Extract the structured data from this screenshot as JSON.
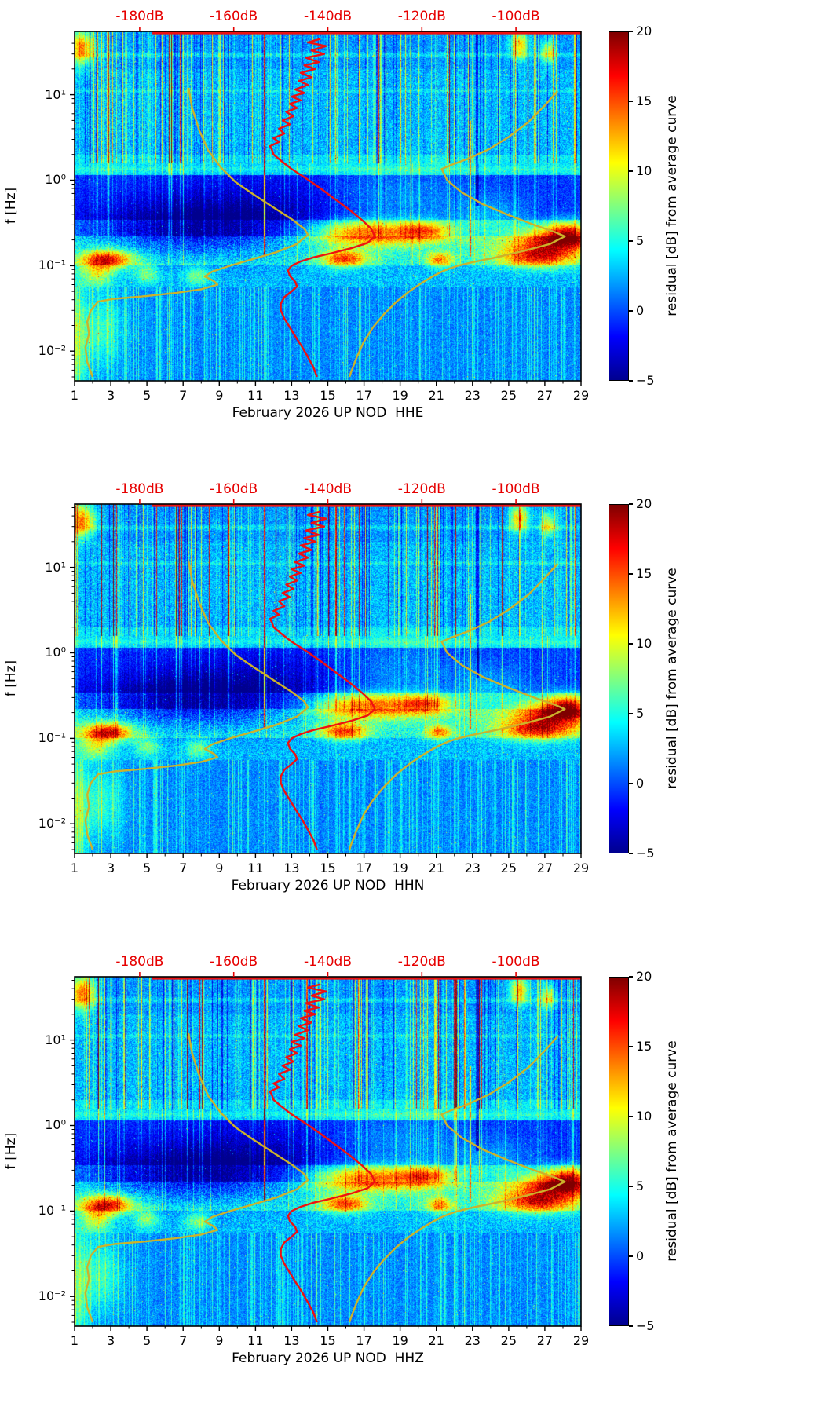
{
  "figure": {
    "colorbar": {
      "label": "residual [dB] from average curve",
      "ticks": [
        20,
        15,
        10,
        5,
        0,
        -5
      ],
      "tick_labels": [
        "20",
        "15",
        "10",
        "5",
        "0",
        "−5"
      ],
      "min": -5,
      "max": 20
    },
    "top_axis": {
      "labels": [
        "-180dB",
        "-160dB",
        "-140dB",
        "-120dB",
        "-100dB"
      ],
      "positions_day": [
        4.6,
        9.8,
        15.0,
        20.2,
        25.4
      ],
      "color": "#e60000"
    },
    "x_axis": {
      "ticks": [
        1,
        3,
        5,
        7,
        9,
        11,
        13,
        15,
        17,
        19,
        21,
        23,
        25,
        27,
        29
      ],
      "min": 1,
      "max": 29
    },
    "y_axis": {
      "label": "f [Hz]",
      "tick_labels": [
        "10¹",
        "10⁰",
        "10⁻¹",
        "10⁻²"
      ],
      "tick_values": [
        10,
        1,
        0.1,
        0.01
      ],
      "scale": "log"
    },
    "panels": [
      {
        "xlabel": "February 2026 UP NOD  HHE",
        "channel": "HHE",
        "seed": 11
      },
      {
        "xlabel": "February 2026 UP NOD  HHN",
        "channel": "HHN",
        "seed": 22
      },
      {
        "xlabel": "February 2026 UP NOD  HHZ",
        "channel": "HHZ",
        "seed": 33
      }
    ]
  },
  "chart_data": {
    "type": "heatmap",
    "subtype": "seismic-noise-residual-spectrogram",
    "title": "",
    "xlabel_panels": [
      "February 2026 UP NOD  HHE",
      "February 2026 UP NOD  HHN",
      "February 2026 UP NOD  HHZ"
    ],
    "ylabel": "f [Hz]",
    "colormap": "jet",
    "residual_range_db": [
      -5,
      20
    ],
    "day_range": [
      1,
      29
    ],
    "freq_range_hz": [
      0.0045,
      55
    ],
    "top_axis_db": {
      "labels_db": [
        -180,
        -160,
        -140,
        -120,
        -100
      ],
      "positions_day": [
        4.6,
        9.8,
        15.0,
        20.2,
        25.4
      ]
    },
    "overlays": {
      "station_psd": {
        "color": "#ee1111",
        "top_clip_line_days": [
          5.3,
          29
        ],
        "points_day_freq": [
          [
            14.6,
            45
          ],
          [
            13.9,
            41
          ],
          [
            14.9,
            37
          ],
          [
            14.1,
            33
          ],
          [
            14.8,
            30
          ],
          [
            13.8,
            27
          ],
          [
            14.5,
            24
          ],
          [
            13.7,
            22
          ],
          [
            14.3,
            20
          ],
          [
            13.5,
            18
          ],
          [
            14.1,
            16
          ],
          [
            13.4,
            14.5
          ],
          [
            13.9,
            13
          ],
          [
            13.2,
            11.5
          ],
          [
            13.7,
            10.5
          ],
          [
            13.0,
            9.5
          ],
          [
            13.5,
            8.6
          ],
          [
            12.9,
            7.8
          ],
          [
            13.3,
            7.0
          ],
          [
            12.7,
            6.3
          ],
          [
            13.1,
            5.6
          ],
          [
            12.5,
            5.0
          ],
          [
            12.9,
            4.5
          ],
          [
            12.3,
            4.0
          ],
          [
            12.6,
            3.5
          ],
          [
            12.0,
            3.1
          ],
          [
            12.3,
            2.8
          ],
          [
            11.8,
            2.5
          ],
          [
            11.9,
            2.3
          ],
          [
            12.0,
            2.0
          ],
          [
            12.4,
            1.7
          ],
          [
            13.0,
            1.35
          ],
          [
            13.8,
            1.05
          ],
          [
            14.6,
            0.8
          ],
          [
            15.4,
            0.6
          ],
          [
            16.2,
            0.45
          ],
          [
            16.9,
            0.34
          ],
          [
            17.4,
            0.27
          ],
          [
            17.6,
            0.22
          ],
          [
            17.2,
            0.185
          ],
          [
            16.3,
            0.16
          ],
          [
            15.2,
            0.14
          ],
          [
            14.2,
            0.125
          ],
          [
            13.5,
            0.112
          ],
          [
            13.0,
            0.1
          ],
          [
            12.8,
            0.088
          ],
          [
            12.9,
            0.076
          ],
          [
            13.2,
            0.065
          ],
          [
            13.3,
            0.057
          ],
          [
            13.0,
            0.05
          ],
          [
            12.6,
            0.043
          ],
          [
            12.4,
            0.036
          ],
          [
            12.4,
            0.03
          ],
          [
            12.6,
            0.024
          ],
          [
            12.9,
            0.019
          ],
          [
            13.2,
            0.015
          ],
          [
            13.6,
            0.011
          ],
          [
            13.9,
            0.0085
          ],
          [
            14.2,
            0.0065
          ],
          [
            14.4,
            0.005
          ]
        ]
      },
      "low_noise_model": {
        "color": "#ccb22b",
        "points_day_freq": [
          [
            7.3,
            12
          ],
          [
            7.5,
            7
          ],
          [
            7.9,
            3.8
          ],
          [
            8.4,
            2.2
          ],
          [
            9.1,
            1.4
          ],
          [
            9.9,
            0.95
          ],
          [
            10.9,
            0.68
          ],
          [
            12.0,
            0.48
          ],
          [
            13.0,
            0.35
          ],
          [
            13.7,
            0.27
          ],
          [
            13.9,
            0.23
          ],
          [
            13.3,
            0.18
          ],
          [
            12.2,
            0.145
          ],
          [
            10.9,
            0.12
          ],
          [
            9.6,
            0.1
          ],
          [
            8.6,
            0.085
          ],
          [
            8.2,
            0.075
          ],
          [
            8.7,
            0.066
          ],
          [
            8.9,
            0.06
          ],
          [
            8.0,
            0.053
          ],
          [
            6.6,
            0.048
          ],
          [
            4.9,
            0.044
          ],
          [
            3.2,
            0.041
          ],
          [
            2.3,
            0.038
          ],
          [
            1.9,
            0.03
          ],
          [
            1.7,
            0.022
          ],
          [
            1.8,
            0.016
          ],
          [
            1.6,
            0.011
          ],
          [
            1.7,
            0.0075
          ],
          [
            2.0,
            0.005
          ]
        ]
      },
      "high_noise_model": {
        "color": "#ccb22b",
        "points_day_freq": [
          [
            27.7,
            11
          ],
          [
            27.0,
            7.5
          ],
          [
            26.1,
            4.8
          ],
          [
            25.0,
            3.2
          ],
          [
            23.9,
            2.3
          ],
          [
            22.8,
            1.8
          ],
          [
            21.8,
            1.5
          ],
          [
            21.3,
            1.35
          ],
          [
            21.6,
            1.0
          ],
          [
            22.4,
            0.72
          ],
          [
            23.6,
            0.52
          ],
          [
            25.0,
            0.39
          ],
          [
            26.4,
            0.3
          ],
          [
            27.6,
            0.245
          ],
          [
            28.1,
            0.22
          ],
          [
            27.3,
            0.18
          ],
          [
            25.9,
            0.15
          ],
          [
            24.3,
            0.125
          ],
          [
            23.0,
            0.11
          ],
          [
            22.2,
            0.1
          ],
          [
            21.7,
            0.092
          ],
          [
            21.3,
            0.085
          ],
          [
            20.8,
            0.075
          ],
          [
            20.2,
            0.063
          ],
          [
            19.5,
            0.05
          ],
          [
            18.8,
            0.038
          ],
          [
            18.1,
            0.027
          ],
          [
            17.5,
            0.019
          ],
          [
            17.0,
            0.013
          ],
          [
            16.6,
            0.0085
          ],
          [
            16.3,
            0.0058
          ],
          [
            16.2,
            0.005
          ]
        ]
      }
    },
    "bands": [
      {
        "lf": [
          1.3,
          1.75
        ],
        "base": 1.8,
        "noise": 2.0
      },
      {
        "lf": [
          0.3,
          1.3
        ],
        "base": 2.6,
        "noise": 2.2
      },
      {
        "lf": [
          0.06,
          0.3
        ],
        "base": 4.0,
        "noise": 1.8
      },
      {
        "lf": [
          -0.46,
          0.06
        ],
        "base": -0.5,
        "noise": 1.6
      },
      {
        "lf": [
          -0.66,
          -0.46
        ],
        "base": 2.2,
        "noise": 2.0
      },
      {
        "lf": [
          -1.0,
          -0.66
        ],
        "base": 5.0,
        "noise": 2.6
      },
      {
        "lf": [
          -1.26,
          -1.0
        ],
        "base": 2.8,
        "noise": 2.2
      },
      {
        "lf": [
          -2.4,
          -1.26
        ],
        "base": 1.4,
        "noise": 1.7
      }
    ],
    "blobs": [
      {
        "day": 17.0,
        "lf": -0.62,
        "dw": 2.0,
        "lfw": 0.1,
        "amp": 12
      },
      {
        "day": 20.4,
        "lf": -0.6,
        "dw": 1.1,
        "lfw": 0.08,
        "amp": 10
      },
      {
        "day": 27.6,
        "lf": -0.7,
        "dw": 1.6,
        "lfw": 0.11,
        "amp": 12
      },
      {
        "day": 2.8,
        "lf": -0.93,
        "dw": 1.0,
        "lfw": 0.08,
        "amp": 13
      },
      {
        "day": 15.9,
        "lf": -0.92,
        "dw": 0.9,
        "lfw": 0.07,
        "amp": 11
      },
      {
        "day": 21.2,
        "lf": -0.93,
        "dw": 0.5,
        "lfw": 0.06,
        "amp": 9
      },
      {
        "day": 26.6,
        "lf": -0.9,
        "dw": 1.5,
        "lfw": 0.09,
        "amp": 11
      },
      {
        "day": 7.5,
        "lf": -0.6,
        "dw": 4.0,
        "lfw": 0.22,
        "amp": -6
      },
      {
        "day": 11.5,
        "lf": -0.3,
        "dw": 5.0,
        "lfw": 0.3,
        "amp": -2.5
      },
      {
        "day": 18.5,
        "lf": -0.25,
        "dw": 2.5,
        "lfw": 0.28,
        "amp": 3
      },
      {
        "day": 24.0,
        "lf": -0.45,
        "dw": 1.5,
        "lfw": 0.2,
        "amp": 3
      },
      {
        "day": 1.4,
        "lf": 1.55,
        "dw": 0.5,
        "lfw": 0.14,
        "amp": 12
      },
      {
        "day": 25.6,
        "lf": 1.58,
        "dw": 0.35,
        "lfw": 0.12,
        "amp": 10
      },
      {
        "day": 27.2,
        "lf": 1.5,
        "dw": 0.3,
        "lfw": 0.1,
        "amp": 8
      },
      {
        "day": 2.5,
        "lf": -1.75,
        "dw": 0.8,
        "lfw": 0.3,
        "amp": 4
      },
      {
        "day": 1.2,
        "lf": -1.9,
        "dw": 0.4,
        "lfw": 0.5,
        "amp": 5
      },
      {
        "day": 2.2,
        "lf": -1.1,
        "dw": 0.6,
        "lfw": 0.1,
        "amp": 6
      },
      {
        "day": 5.0,
        "lf": -1.1,
        "dw": 0.5,
        "lfw": 0.08,
        "amp": 5
      },
      {
        "day": 7.8,
        "lf": -1.12,
        "dw": 0.5,
        "lfw": 0.08,
        "amp": 5
      },
      {
        "day": 28.3,
        "lf": -0.62,
        "dw": 0.8,
        "lfw": 0.1,
        "amp": 9
      }
    ],
    "hlines": [
      {
        "lf": 1.47,
        "w": 0.02,
        "amp": 2.0
      },
      {
        "lf": 1.05,
        "w": 0.015,
        "amp": 1.6
      },
      {
        "lf": 0.13,
        "w": 0.02,
        "amp": 1.2
      }
    ],
    "event_lines": [
      {
        "day": 11.5,
        "hw": 0.05,
        "amp": 14,
        "lf_min": -0.9,
        "lf_max": 1.75
      },
      {
        "day": 22.9,
        "hw": 0.04,
        "amp": 8,
        "lf_min": -0.9,
        "lf_max": 0.7
      },
      {
        "day": 23.3,
        "hw": 0.09,
        "amp": -4,
        "lf_min": -0.3,
        "lf_max": 1.75
      }
    ]
  }
}
